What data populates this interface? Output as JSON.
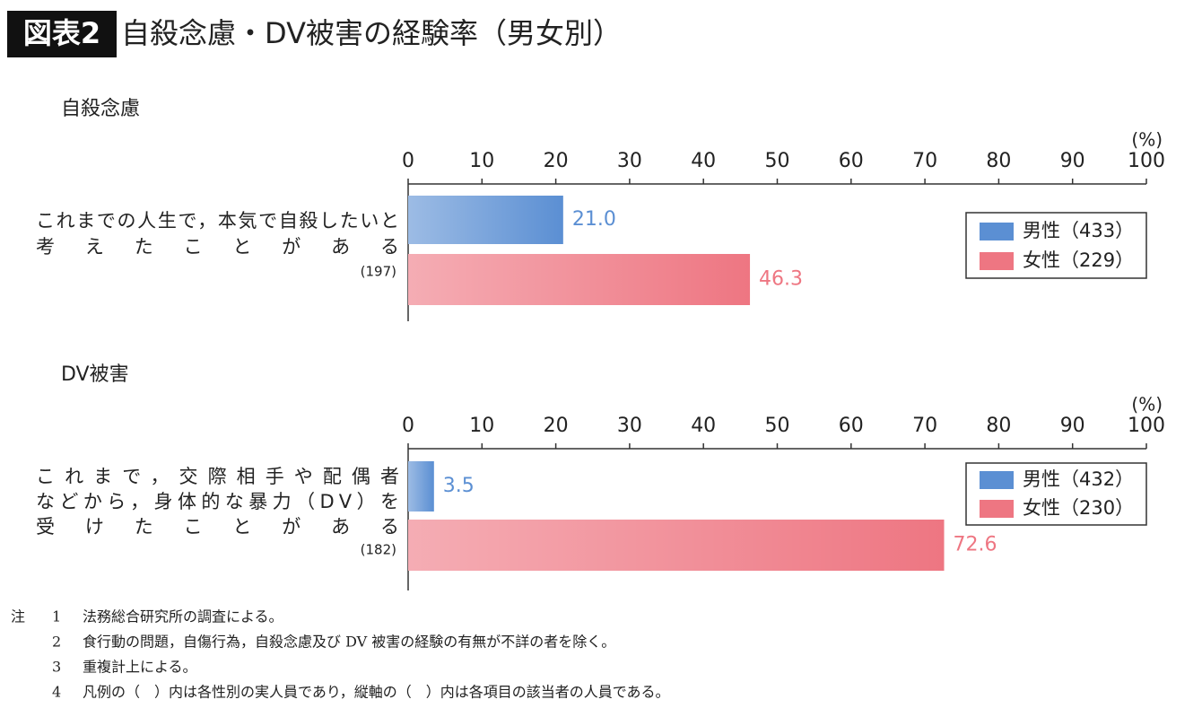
{
  "header": {
    "badge": "図表2",
    "title": "自殺念慮・DV被害の経験率（男女別）"
  },
  "chart_data": [
    {
      "type": "bar",
      "orientation": "horizontal",
      "title": "自殺念慮",
      "categories": [
        [
          "これまでの人生で，本気で自殺したいと",
          "考えたことがある"
        ]
      ],
      "category_counts": [
        "(197)"
      ],
      "x_label": "(%)",
      "xlim": [
        0,
        100
      ],
      "xticks": [
        0,
        10,
        20,
        30,
        40,
        50,
        60,
        70,
        80,
        90,
        100
      ],
      "legend": "right",
      "series": [
        {
          "name": "男性（433）",
          "color": "#5b8fd3",
          "values": [
            21.0
          ],
          "value_labels": [
            "21.0"
          ]
        },
        {
          "name": "女性（229）",
          "color": "#ee7682",
          "values": [
            46.3
          ]
        }
      ]
    },
    {
      "type": "bar",
      "orientation": "horizontal",
      "title": "DV被害",
      "categories": [
        [
          "これまで，交際相手や配偶者",
          "などから，身体的な暴力（DV）を",
          "受けたことがある"
        ]
      ],
      "category_counts": [
        "(182)"
      ],
      "x_label": "(%)",
      "xlim": [
        0,
        100
      ],
      "xticks": [
        0,
        10,
        20,
        30,
        40,
        50,
        60,
        70,
        80,
        90,
        100
      ],
      "legend": "right",
      "series": [
        {
          "name": "男性（432）",
          "color": "#5b8fd3",
          "values": [
            3.5
          ]
        },
        {
          "name": "女性（230）",
          "color": "#ee7682",
          "values": [
            72.6
          ]
        }
      ]
    }
  ],
  "notes": {
    "label": "注",
    "items": [
      {
        "number": "1",
        "text": "法務総合研究所の調査による。"
      },
      {
        "number": "2",
        "text": "食行動の問題，自傷行為，自殺念慮及び DV 被害の経験の有無が不詳の者を除く。"
      },
      {
        "number": "3",
        "text": "重複計上による。"
      },
      {
        "number": "4",
        "text": "凡例の（　）内は各性別の実人員であり，縦軸の（　）内は各項目の該当者の人員である。"
      }
    ]
  }
}
